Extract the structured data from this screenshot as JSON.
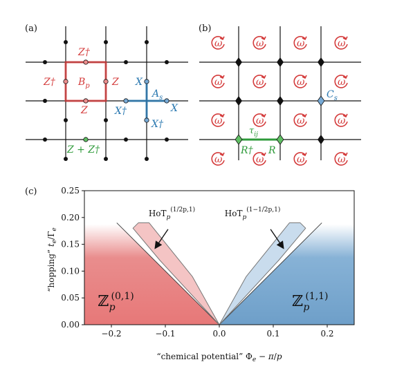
{
  "panel_a": {
    "label": "(a)",
    "z_dagger_top": "Z†",
    "z_dagger_left": "Z†",
    "b_p": "B",
    "b_p_sub": "p",
    "z_right": "Z",
    "z_bottom": "Z",
    "x_top": "X",
    "a_s": "A",
    "a_s_sub": "s",
    "x_dagger_left": "X†",
    "x_right": "X",
    "x_dagger_bottom": "X†",
    "z_plus_zdagger": "Z + Z†"
  },
  "panel_b": {
    "label": "(b)",
    "omega": "ω",
    "c_s": "C",
    "c_s_sub": "s",
    "tau": "τ",
    "tau_sub": "ij",
    "r_dagger": "R†",
    "r": "R"
  },
  "colors": {
    "red": "#d43b3b",
    "blue": "#2a78b0",
    "green": "#2e9a3a",
    "phase_red": "#e77b7b",
    "phase_blue": "#6fa3cc"
  },
  "chart_data": {
    "type": "area",
    "panel_label": "(c)",
    "xlabel": "“chemical potential” Φe − π/p",
    "ylabel": "“hopping” te/Γe",
    "xlim": [
      -0.25,
      0.25
    ],
    "ylim": [
      0.0,
      0.25
    ],
    "xticks": [
      -0.2,
      -0.1,
      0.0,
      0.1,
      0.2
    ],
    "xtick_labels": [
      "−0.2",
      "−0.1",
      "0.0",
      "0.1",
      "0.2"
    ],
    "yticks": [
      0.0,
      0.05,
      0.1,
      0.15,
      0.2,
      0.25
    ],
    "ytick_labels": [
      "0.00",
      "0.05",
      "0.10",
      "0.15",
      "0.20",
      "0.25"
    ],
    "phases": [
      {
        "name": "Z_p^(0,1)",
        "label_main": "ℤ",
        "label_sub": "p",
        "label_sup": "(0,1)",
        "boundary": {
          "x": [
            -0.25,
            0.0
          ],
          "y": [
            0.25,
            0.0
          ]
        }
      },
      {
        "name": "Z_p^(1,1)",
        "label_main": "ℤ",
        "label_sub": "p",
        "label_sup": "(1,1)",
        "boundary": {
          "x": [
            0.0,
            0.25
          ],
          "y": [
            0.0,
            0.25
          ]
        }
      },
      {
        "name": "HoT_p^(1/2p,1)",
        "label_main": "HoT",
        "label_sub": "p",
        "label_sup": "(1/2p,1)",
        "region": {
          "x": [
            -0.16,
            -0.15,
            -0.13,
            -0.05,
            0.0,
            -0.11,
            -0.16
          ],
          "y": [
            0.18,
            0.19,
            0.19,
            0.09,
            0.0,
            0.12,
            0.18
          ]
        }
      },
      {
        "name": "HoT_p^(1-1/2p,1)",
        "label_main": "HoT",
        "label_sub": "p",
        "label_sup": "(1−1/2p,1)",
        "region": {
          "x": [
            0.16,
            0.15,
            0.13,
            0.05,
            0.0,
            0.11,
            0.16
          ],
          "y": [
            0.18,
            0.19,
            0.19,
            0.09,
            0.0,
            0.12,
            0.18
          ]
        }
      }
    ]
  }
}
